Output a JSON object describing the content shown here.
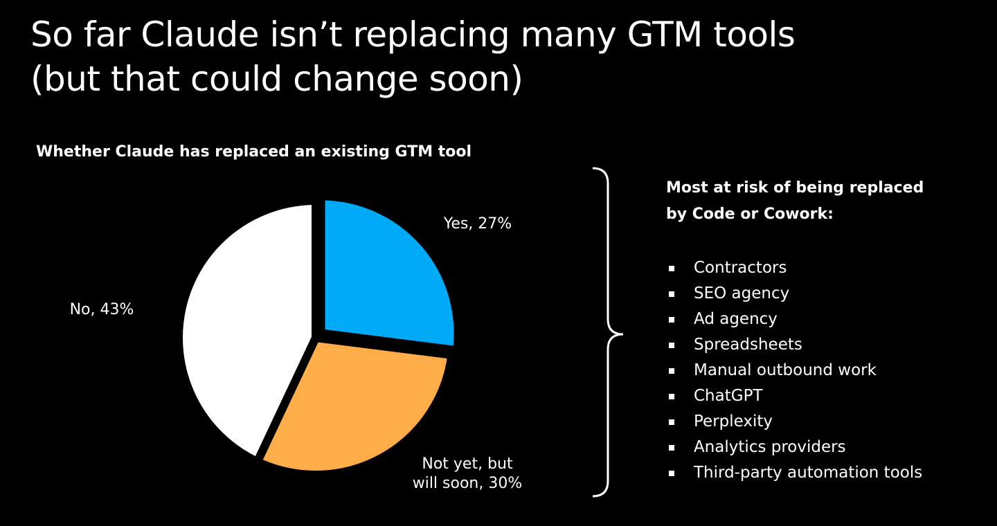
{
  "slide": {
    "title_line1": "So far Claude isn’t replacing many GTM tools",
    "title_line2": "(but that could change soon)"
  },
  "chart_data": {
    "type": "pie",
    "title": "Whether Claude has replaced an existing GTM tool",
    "slices": [
      {
        "label": "Yes",
        "value": 27,
        "display": "Yes, 27%",
        "color": "#00AAF7",
        "display_lines": [
          "Yes, 27%"
        ],
        "exploded": true
      },
      {
        "label": "Not yet, but will soon",
        "value": 30,
        "display": "Not yet, but will soon, 30%",
        "color": "#FFAD48",
        "display_lines": [
          "Not yet, but",
          "will soon, 30%"
        ],
        "exploded": false
      },
      {
        "label": "No",
        "value": 43,
        "display": "No, 43%",
        "color": "#FFFFFF",
        "display_lines": [
          "No, 43%"
        ],
        "exploded": false
      }
    ],
    "unit": "%",
    "legend": "none"
  },
  "risk_panel": {
    "heading_line1": "Most at risk of being replaced",
    "heading_line2": "by Code or Cowork:",
    "items": [
      "Contractors",
      "SEO agency",
      "Ad agency",
      "Spreadsheets",
      "Manual outbound work",
      "ChatGPT",
      "Perplexity",
      "Analytics providers",
      "Third-party automation tools"
    ]
  }
}
